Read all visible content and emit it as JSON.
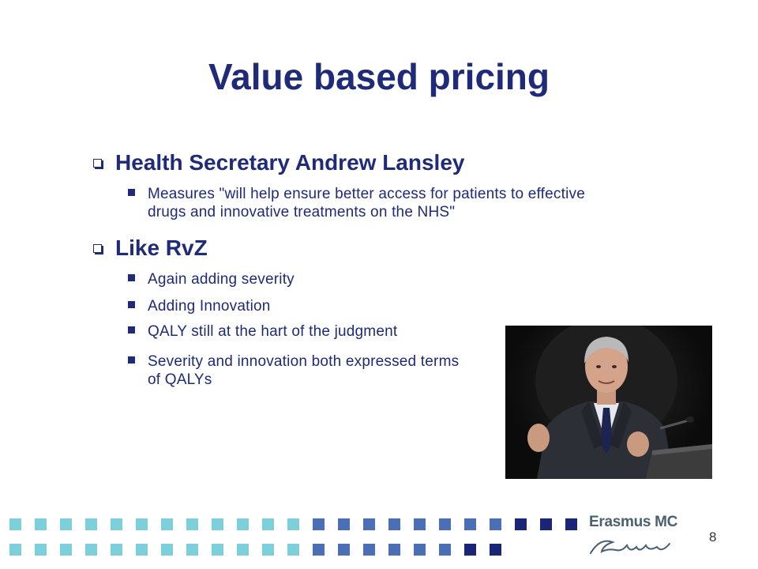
{
  "slide": {
    "title": "Value based pricing",
    "page_number": "8"
  },
  "bullets": {
    "b1": {
      "heading": "Health Secretary Andrew Lansley",
      "items": [
        "Measures \"will help ensure better access for patients to effective drugs and innovative treatments on the NHS\""
      ]
    },
    "b2": {
      "heading": "Like RvZ",
      "items": [
        "Again adding severity",
        "Adding Innovation",
        "QALY still at the hart of the judgment",
        "Severity and innovation both expressed terms of QALYs"
      ]
    }
  },
  "logo": {
    "name": "Erasmus MC",
    "signature": "Erafus"
  },
  "colors": {
    "title": "#1f2a78",
    "light_square": "#7dcfdc",
    "mid_square": "#4a6fb5",
    "dark_square": "#1c2478"
  },
  "photo": {
    "subject": "man in suit speaking at podium"
  }
}
